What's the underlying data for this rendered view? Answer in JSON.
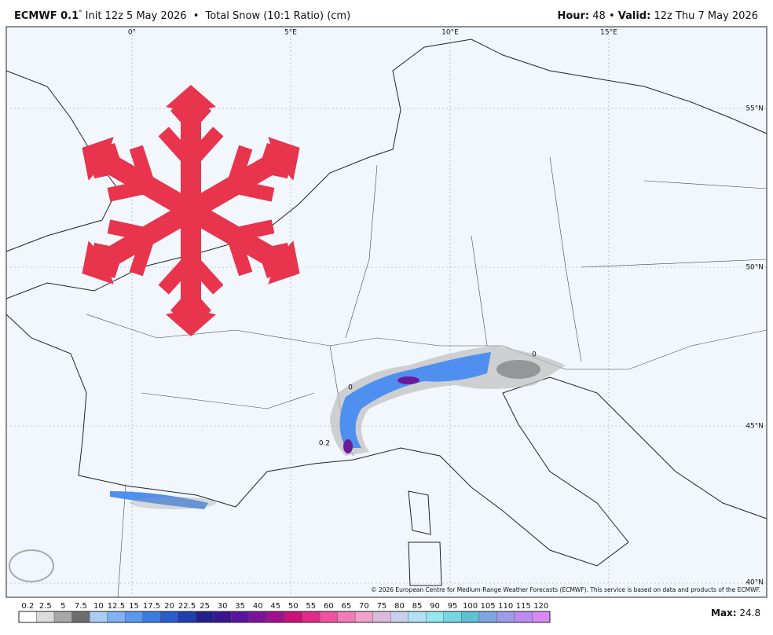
{
  "header": {
    "model": "ECMWF 0.1",
    "degree": "°",
    "init": "Init 12z 5 May 2026",
    "separator": "•",
    "product": "Total Snow (10:1 Ratio) (cm)",
    "hour_label": "Hour:",
    "hour": "48",
    "valid_label": "Valid:",
    "valid": "12z Thu 7 May 2026"
  },
  "map": {
    "lon_labels": [
      "0°",
      "5°E",
      "10°E",
      "15°E"
    ],
    "lat_labels": [
      "55°N",
      "50°N",
      "45°N",
      "40°N"
    ],
    "contour_labels": [
      "0.2",
      "0",
      "0"
    ],
    "copyright": "© 2026 European Centre for Medium-Range Weather Forecasts (ECMWF). This service is based on data and products of the ECMWF."
  },
  "colorbar": {
    "labels": [
      0.2,
      2.5,
      5,
      7.5,
      10,
      12.5,
      15,
      17.5,
      20,
      22.5,
      25,
      30,
      35,
      40,
      45,
      50,
      55,
      60,
      65,
      70,
      75,
      80,
      85,
      90,
      95,
      100,
      105,
      110,
      115,
      120
    ],
    "colors": [
      "#ffffff",
      "#dcdcdc",
      "#a8a8a8",
      "#6e6e6e",
      "#a9cdf5",
      "#80b2f2",
      "#5c98ec",
      "#3d7be0",
      "#2a5ccc",
      "#1e3fae",
      "#231f8c",
      "#3a168e",
      "#5a14a0",
      "#7c149a",
      "#a0128a",
      "#c8127a",
      "#e22a86",
      "#ee52a0",
      "#f27cb8",
      "#eea2cc",
      "#dcbade",
      "#c8d0ee",
      "#b2e0f4",
      "#94e6f0",
      "#76d6e2",
      "#62c0d6",
      "#7aa8de",
      "#9c9ce6",
      "#bc8cee",
      "#d68af2"
    ]
  },
  "max": {
    "label": "Max:",
    "value": 24.8
  }
}
